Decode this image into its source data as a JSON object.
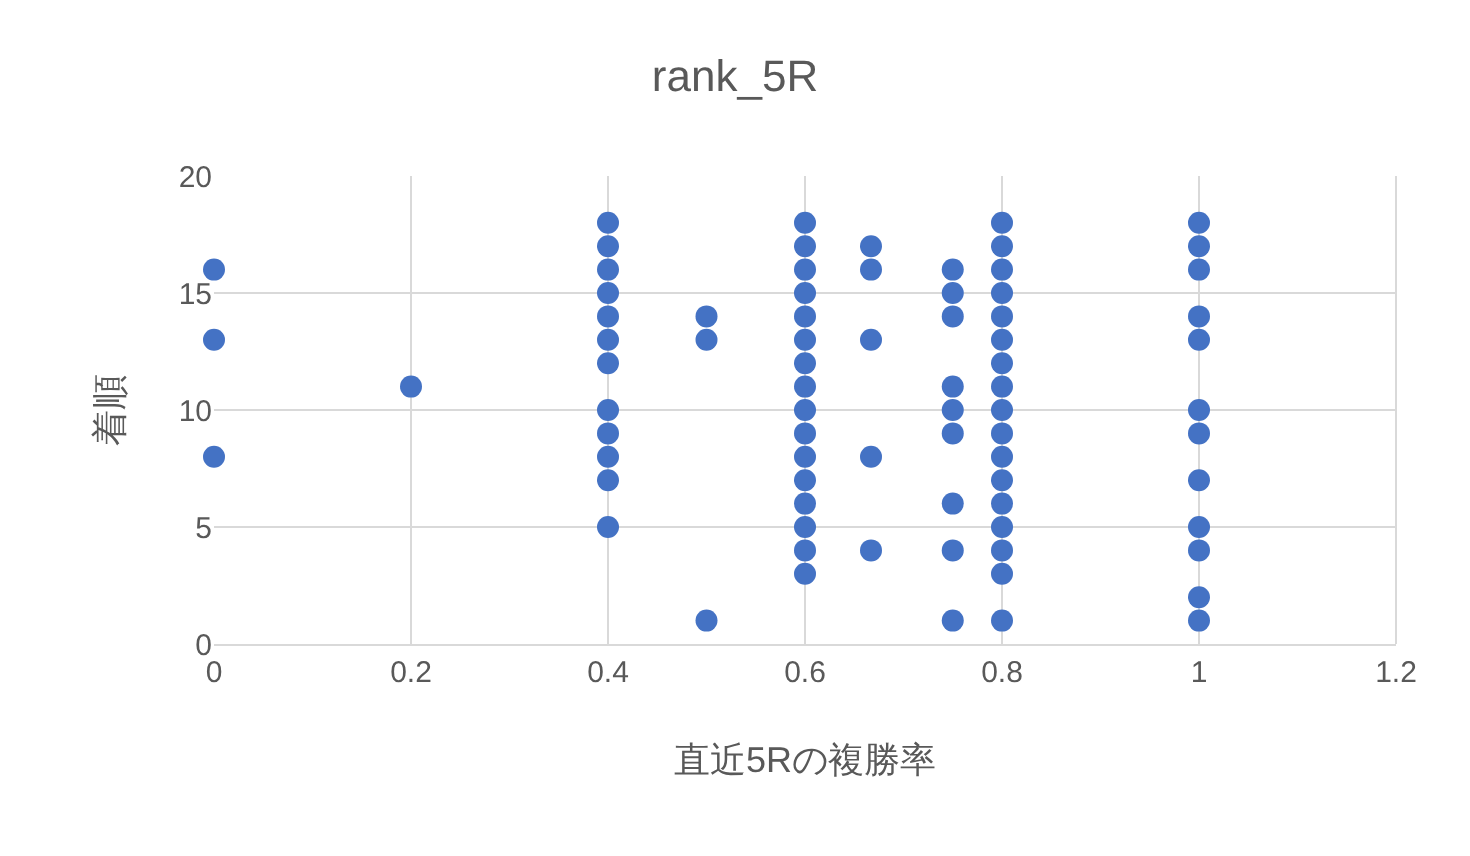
{
  "chart_data": {
    "type": "scatter",
    "title": "rank_5R",
    "xlabel": "直近5Rの複勝率",
    "ylabel": "着順",
    "x": [
      0,
      0,
      0,
      0.2,
      0.4,
      0.4,
      0.4,
      0.4,
      0.4,
      0.4,
      0.4,
      0.4,
      0.4,
      0.4,
      0.4,
      0.4,
      0.5,
      0.5,
      0.5,
      0.6,
      0.6,
      0.6,
      0.6,
      0.6,
      0.6,
      0.6,
      0.6,
      0.6,
      0.6,
      0.6,
      0.6,
      0.6,
      0.6,
      0.6,
      0.6,
      0.667,
      0.667,
      0.667,
      0.667,
      0.667,
      0.75,
      0.75,
      0.75,
      0.75,
      0.75,
      0.75,
      0.75,
      0.75,
      0.75,
      0.8,
      0.8,
      0.8,
      0.8,
      0.8,
      0.8,
      0.8,
      0.8,
      0.8,
      0.8,
      0.8,
      0.8,
      0.8,
      0.8,
      0.8,
      0.8,
      0.8,
      1,
      1,
      1,
      1,
      1,
      1,
      1,
      1,
      1,
      1,
      1,
      1
    ],
    "series": [
      {
        "color": "#4472c4",
        "values": [
          16,
          13,
          8,
          11,
          18,
          17,
          16,
          15,
          14,
          13,
          12,
          10,
          9,
          8,
          7,
          5,
          14,
          13,
          1,
          18,
          17,
          16,
          15,
          14,
          13,
          12,
          11,
          10,
          9,
          8,
          7,
          6,
          5,
          4,
          3,
          17,
          16,
          13,
          8,
          4,
          16,
          15,
          14,
          11,
          10,
          9,
          6,
          4,
          1,
          18,
          17,
          16,
          15,
          14,
          13,
          12,
          11,
          10,
          9,
          8,
          7,
          6,
          5,
          4,
          3,
          1,
          18,
          17,
          16,
          14,
          13,
          10,
          9,
          7,
          5,
          4,
          2,
          1
        ]
      }
    ],
    "xlim": [
      0,
      1.2
    ],
    "xticks": [
      0,
      0.2,
      0.4,
      0.6,
      0.8,
      1,
      1.2
    ],
    "ylim": [
      0,
      20
    ],
    "yticks": [
      0,
      5,
      10,
      15,
      20
    ],
    "grid": true,
    "marker": "circle"
  }
}
